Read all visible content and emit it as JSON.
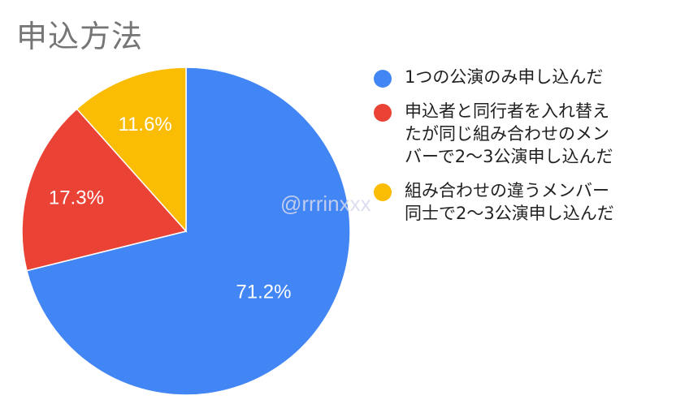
{
  "chart_data": {
    "type": "pie",
    "title": "申込方法",
    "slices": [
      {
        "label": "1つの公演のみ申し込んだ",
        "value": 71.2,
        "display": "71.2%",
        "color": "#4285F4"
      },
      {
        "label": "申込者と同行者を入れ替え\nたが同じ組み合わせのメン\nバーで2〜3公演申し込んだ",
        "value": 17.3,
        "display": "17.3%",
        "color": "#EA4335"
      },
      {
        "label": "組み合わせの違うメンバー\n同士で2〜3公演申し込んだ",
        "value": 11.6,
        "display": "11.6%",
        "color": "#FBBC04"
      }
    ],
    "legend_position": "right",
    "watermark": "@rrrinxxx"
  }
}
